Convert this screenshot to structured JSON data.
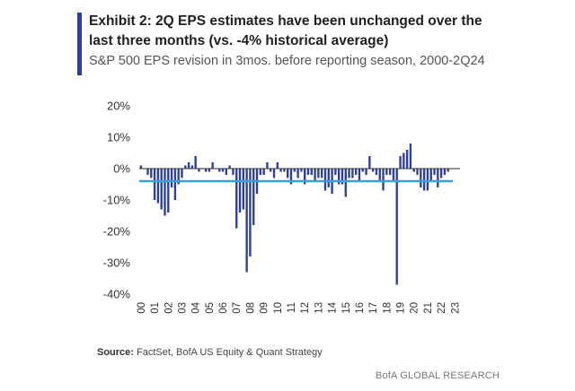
{
  "header": {
    "title": "Exhibit 2: 2Q EPS estimates have been unchanged over the last three months (vs. -4% historical average)",
    "subtitle": "S&P 500 EPS revision in 3mos. before reporting season, 2000-2Q24"
  },
  "footer": {
    "source_label": "Source:",
    "source_text": "FactSet, BofA US Equity & Quant Strategy",
    "brand": "BofA GLOBAL RESEARCH"
  },
  "colors": {
    "accent": "#2b3f9e",
    "bars": "#2b3f9e",
    "average_line": "#3aa0d8",
    "axis": "#333333"
  },
  "chart_data": {
    "type": "bar",
    "title": "S&P 500 EPS revision in 3mos. before reporting season, 2000-2Q24",
    "ylim": [
      -40,
      20
    ],
    "yticks": [
      20,
      10,
      0,
      -10,
      -20,
      -30,
      -40
    ],
    "ytick_labels": [
      "20%",
      "10%",
      "0%",
      "-10%",
      "-20%",
      "-30%",
      "-40%"
    ],
    "xtick_labels": [
      "00",
      "01",
      "02",
      "03",
      "04",
      "05",
      "06",
      "07",
      "08",
      "09",
      "10",
      "11",
      "12",
      "13",
      "14",
      "15",
      "16",
      "17",
      "18",
      "19",
      "20",
      "21",
      "22",
      "23"
    ],
    "x_start_year": 2000,
    "periods_per_year": 4,
    "series": [
      {
        "type": "bar",
        "values": [
          1,
          0,
          -2,
          -3,
          -10,
          -11,
          -13,
          -15,
          -14,
          -6,
          -10,
          -5,
          -3,
          1,
          2,
          1,
          4,
          -1,
          0,
          -1,
          -1,
          2,
          0,
          -1,
          -1,
          -2,
          1,
          -2,
          -19,
          -14,
          -13,
          -33,
          -28,
          -18,
          -8,
          -2,
          -2,
          2,
          -1,
          -3,
          2,
          -1,
          -1,
          -3,
          -5,
          -1,
          -3,
          -1,
          -5,
          -2,
          -2,
          -4,
          -3,
          -3,
          -7,
          -6,
          -8,
          -2,
          -5,
          -5,
          -9,
          -3,
          -3,
          -2,
          -4,
          -1,
          -2,
          4,
          -1,
          -2,
          -4,
          -7,
          -2,
          -2,
          -4,
          -37,
          4,
          5,
          6,
          8,
          -1,
          -2,
          -6,
          -7,
          -7,
          -4,
          -2,
          -6,
          -3,
          -2,
          -1,
          0,
          0,
          0
        ]
      },
      {
        "type": "line",
        "values": [
          -4,
          -4
        ]
      }
    ]
  }
}
